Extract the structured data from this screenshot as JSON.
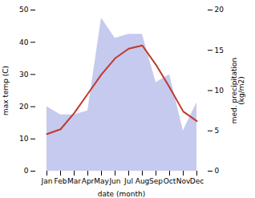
{
  "chart_data": {
    "type": "line",
    "categories": [
      "Jan",
      "Feb",
      "Mar",
      "Apr",
      "May",
      "Jun",
      "Jul",
      "Aug",
      "Sep",
      "Oct",
      "Nov",
      "Dec"
    ],
    "xlabel": "date (month)",
    "ylabel": "max temp (C)",
    "y2label": "med. precipitation\n(kg/m2)",
    "series": [
      {
        "type": "area",
        "color": "#c5caee",
        "axis": "y2",
        "values": [
          8.0,
          7.0,
          7.0,
          7.5,
          19.0,
          16.5,
          17.0,
          17.0,
          11.0,
          12.0,
          5.0,
          8.5
        ]
      },
      {
        "type": "line",
        "color": "#c0392b",
        "values": [
          11.5,
          13.0,
          18.0,
          24.0,
          30.0,
          35.0,
          38.0,
          39.0,
          33.0,
          26.0,
          18.5,
          15.5
        ]
      }
    ],
    "ylim": [
      0,
      50
    ],
    "yticks": [
      0,
      10,
      20,
      30,
      40,
      50
    ],
    "y2lim": [
      0,
      20
    ],
    "y2ticks": [
      0,
      5,
      10,
      15,
      20
    ],
    "grid": false
  }
}
